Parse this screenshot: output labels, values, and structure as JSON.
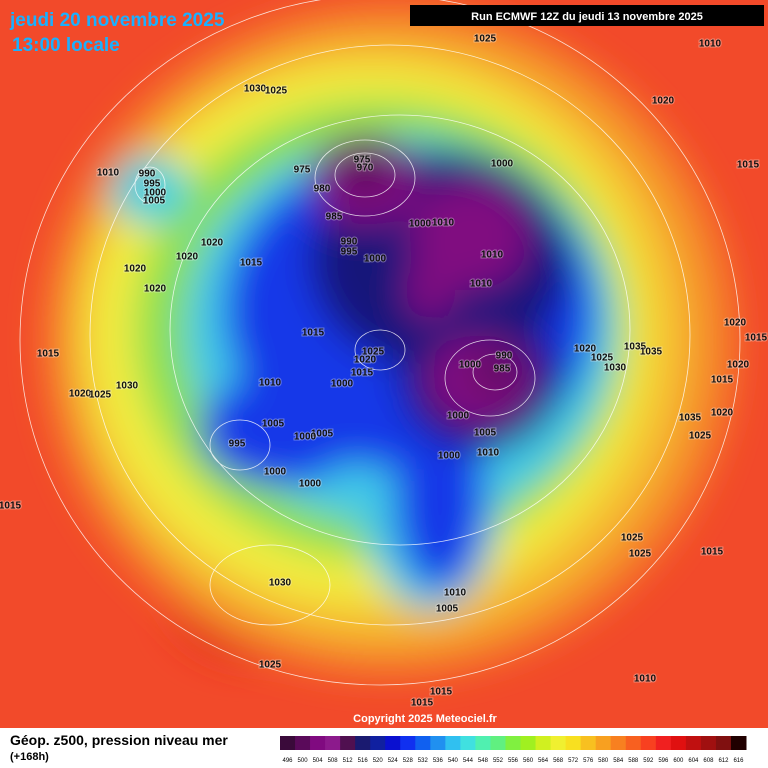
{
  "header": {
    "date": "jeudi 20 novembre 2025",
    "time": "13:00 locale",
    "run": "Run ECMWF 12Z du jeudi 13 novembre 2025"
  },
  "map": {
    "isobar_labels": [
      "1025",
      "1010",
      "1030",
      "1025",
      "1020",
      "1015",
      "1010",
      "990",
      "995",
      "1000",
      "1005",
      "975",
      "975",
      "970",
      "980",
      "1000",
      "985",
      "1000",
      "1010",
      "990",
      "995",
      "1000",
      "1010",
      "1020",
      "1020",
      "1015",
      "1020",
      "1020",
      "1010",
      "1015",
      "1025",
      "1020",
      "1015",
      "1000",
      "1010",
      "1020",
      "1025",
      "1035",
      "1035",
      "1030",
      "1020",
      "1020",
      "1015",
      "1015",
      "990",
      "985",
      "1000",
      "1000",
      "1005",
      "1010",
      "1000",
      "1015",
      "1030",
      "1020",
      "1025",
      "1005",
      "1005",
      "1000",
      "995",
      "1000",
      "1000",
      "1035",
      "1020",
      "1025",
      "1015",
      "1025",
      "1025",
      "1015",
      "1030",
      "1010",
      "1005",
      "1025",
      "1010",
      "1015",
      "1015"
    ],
    "copyright": "Copyright 2025 Meteociel.fr"
  },
  "legend": {
    "title": "Géop. z500, pression niveau mer",
    "lead": "(+168h)",
    "labels": [
      "496",
      "500",
      "504",
      "508",
      "512",
      "516",
      "520",
      "524",
      "528",
      "532",
      "536",
      "540",
      "544",
      "548",
      "552",
      "556",
      "560",
      "564",
      "568",
      "572",
      "576",
      "580",
      "584",
      "588",
      "592",
      "596",
      "600",
      "604",
      "608",
      "612",
      "616"
    ],
    "colors": [
      "#3a0a3a",
      "#5a0a5a",
      "#800a80",
      "#8c1a8c",
      "#501050",
      "#1a1a70",
      "#1020a0",
      "#0a10d0",
      "#1030f0",
      "#1060f0",
      "#2090f0",
      "#30c0f0",
      "#40e0e0",
      "#50f0b0",
      "#60f080",
      "#80f040",
      "#a0f020",
      "#d0f020",
      "#f0f030",
      "#f8e020",
      "#f8c020",
      "#f8a020",
      "#f88020",
      "#f86020",
      "#f84020",
      "#f02020",
      "#e01010",
      "#c01010",
      "#a01010",
      "#801010",
      "#200000"
    ]
  }
}
